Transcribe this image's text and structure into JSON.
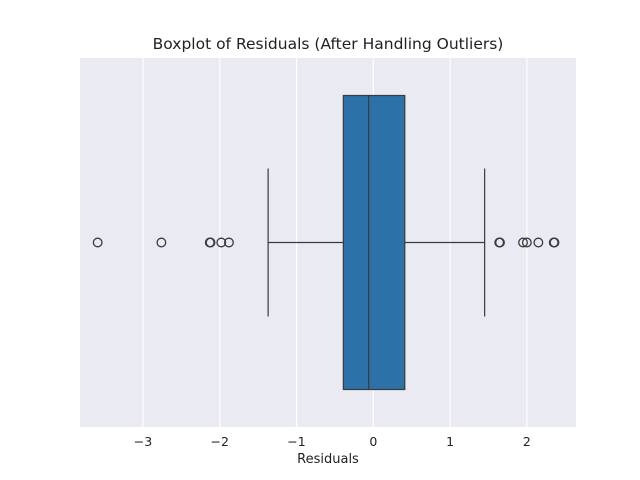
{
  "chart_data": {
    "type": "boxplot",
    "title": "Boxplot of Residuals (After Handling Outliers)",
    "xlabel": "Residuals",
    "ylabel": "",
    "xlim": [
      -3.82,
      2.64
    ],
    "xticks": [
      -3,
      -2,
      -1,
      0,
      1,
      2
    ],
    "xtick_labels": [
      "−3",
      "−2",
      "−1",
      "0",
      "1",
      "2"
    ],
    "grid": true,
    "background_color": "#eaeaf2",
    "box_color": "#2c72a9",
    "line_color": "#3a3a3a",
    "box": {
      "whisker_low": -1.37,
      "q1": -0.39,
      "median": -0.06,
      "q3": 0.41,
      "whisker_high": 1.45
    },
    "outliers": [
      -3.59,
      -2.76,
      -2.13,
      -2.12,
      -1.98,
      -1.88,
      1.64,
      1.65,
      1.95,
      2.0,
      2.15,
      2.35,
      2.36
    ]
  }
}
